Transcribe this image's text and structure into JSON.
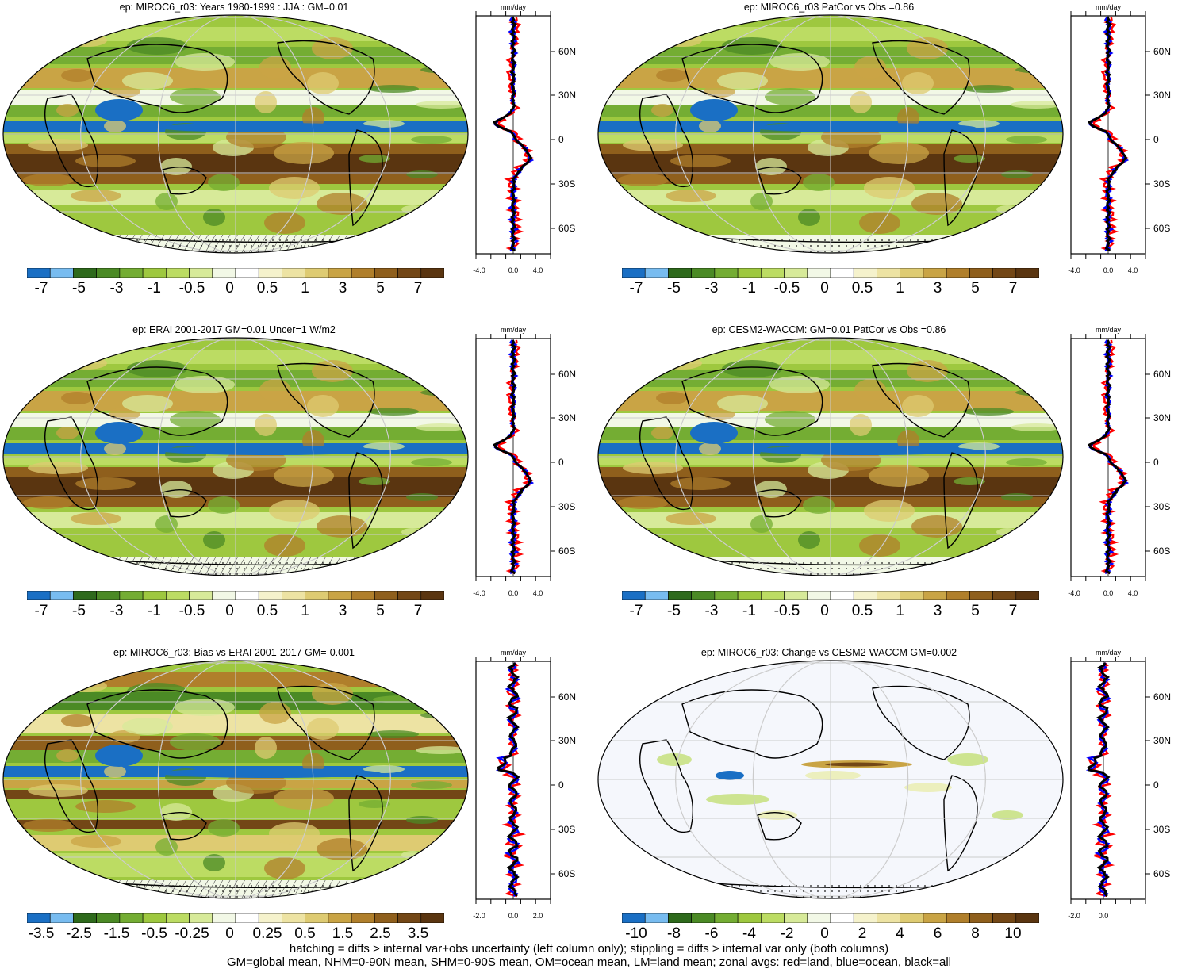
{
  "panels": [
    {
      "title": "ep: MIROC6_r03: Years 1980-1999 : JJA : GM=0.01",
      "kind": "clim",
      "hatch": true,
      "colorbar_labels": [
        "-7",
        "-5",
        "-3",
        "-1",
        "-0.5",
        "0",
        "0.5",
        "1",
        "3",
        "5",
        "7"
      ],
      "zonal_unit": "mm/day",
      "zonal_xticks": [
        "-4.0",
        "0.0",
        "4.0"
      ],
      "zonal_lat_labels": [
        "60N",
        "30N",
        "0",
        "30S",
        "60S"
      ]
    },
    {
      "title": "ep: MIROC6_r03 PatCor vs Obs =0.86",
      "kind": "clim",
      "hatch": false,
      "colorbar_labels": [
        "-7",
        "-5",
        "-3",
        "-1",
        "-0.5",
        "0",
        "0.5",
        "1",
        "3",
        "5",
        "7"
      ],
      "zonal_unit": "mm/day",
      "zonal_xticks": [
        "-4.0",
        "0.0",
        "4.0"
      ],
      "zonal_lat_labels": [
        "60N",
        "30N",
        "0",
        "30S",
        "60S"
      ]
    },
    {
      "title": "ep: ERAI 2001-2017 GM=0.01 Uncer=1 W/m2",
      "kind": "clim",
      "hatch": true,
      "colorbar_labels": [
        "-7",
        "-5",
        "-3",
        "-1",
        "-0.5",
        "0",
        "0.5",
        "1",
        "3",
        "5",
        "7"
      ],
      "zonal_unit": "mm/day",
      "zonal_xticks": [
        "-4.0",
        "0.0",
        "4.0"
      ],
      "zonal_lat_labels": [
        "60N",
        "30N",
        "0",
        "30S",
        "60S"
      ]
    },
    {
      "title": "ep: CESM2-WACCM: GM=0.01 PatCor vs Obs =0.86",
      "kind": "clim",
      "hatch": false,
      "colorbar_labels": [
        "-7",
        "-5",
        "-3",
        "-1",
        "-0.5",
        "0",
        "0.5",
        "1",
        "3",
        "5",
        "7"
      ],
      "zonal_unit": "mm/day",
      "zonal_xticks": [
        "-4.0",
        "0.0",
        "4.0"
      ],
      "zonal_lat_labels": [
        "60N",
        "30N",
        "0",
        "30S",
        "60S"
      ]
    },
    {
      "title": "ep: MIROC6_r03: Bias vs ERAI 2001-2017 GM=-0.001",
      "kind": "bias",
      "hatch": true,
      "colorbar_labels": [
        "-3.5",
        "-2.5",
        "-1.5",
        "-0.5",
        "-0.25",
        "0",
        "0.25",
        "0.5",
        "1.5",
        "2.5",
        "3.5"
      ],
      "zonal_unit": "mm/day",
      "zonal_xticks": [
        "-2.0",
        "0.0",
        "2.0"
      ],
      "zonal_lat_labels": [
        "60N",
        "30N",
        "0",
        "30S",
        "60S"
      ]
    },
    {
      "title": "ep: MIROC6_r03: Change vs CESM2-WACCM GM=0.002",
      "kind": "change",
      "hatch": false,
      "colorbar_labels": [
        "-10",
        "-8",
        "-6",
        "-4",
        "-2",
        "0",
        "2",
        "4",
        "6",
        "8",
        "10"
      ],
      "zonal_unit": "mm/day",
      "zonal_xticks": [
        "-2.0",
        "0.0"
      ],
      "zonal_lat_labels": [
        "60N",
        "30N",
        "0",
        "30S",
        "60S"
      ]
    }
  ],
  "colorbar_colors": [
    "#1a6fc4",
    "#78bcf0",
    "#2e6a1c",
    "#4b8a25",
    "#74ad33",
    "#9ec83f",
    "#bcdc63",
    "#d7ea99",
    "#f2f8e6",
    "#ffffff",
    "#f5f2cc",
    "#ede3a3",
    "#decb72",
    "#c9a445",
    "#b07f2b",
    "#8f5f1c",
    "#734716",
    "#5a3510"
  ],
  "footer": {
    "line1": "hatching = diffs > internal var+obs uncertainty (left column only); stippling = diffs > internal var only (both columns)",
    "line2": "GM=global mean, NHM=0-90N mean, SHM=0-90S mean, OM=ocean mean, LM=land mean; zonal avgs: red=land, blue=ocean, black=all"
  },
  "legend_colors": {
    "land": "#ff0000",
    "ocean": "#0000ff",
    "all": "#000000"
  }
}
